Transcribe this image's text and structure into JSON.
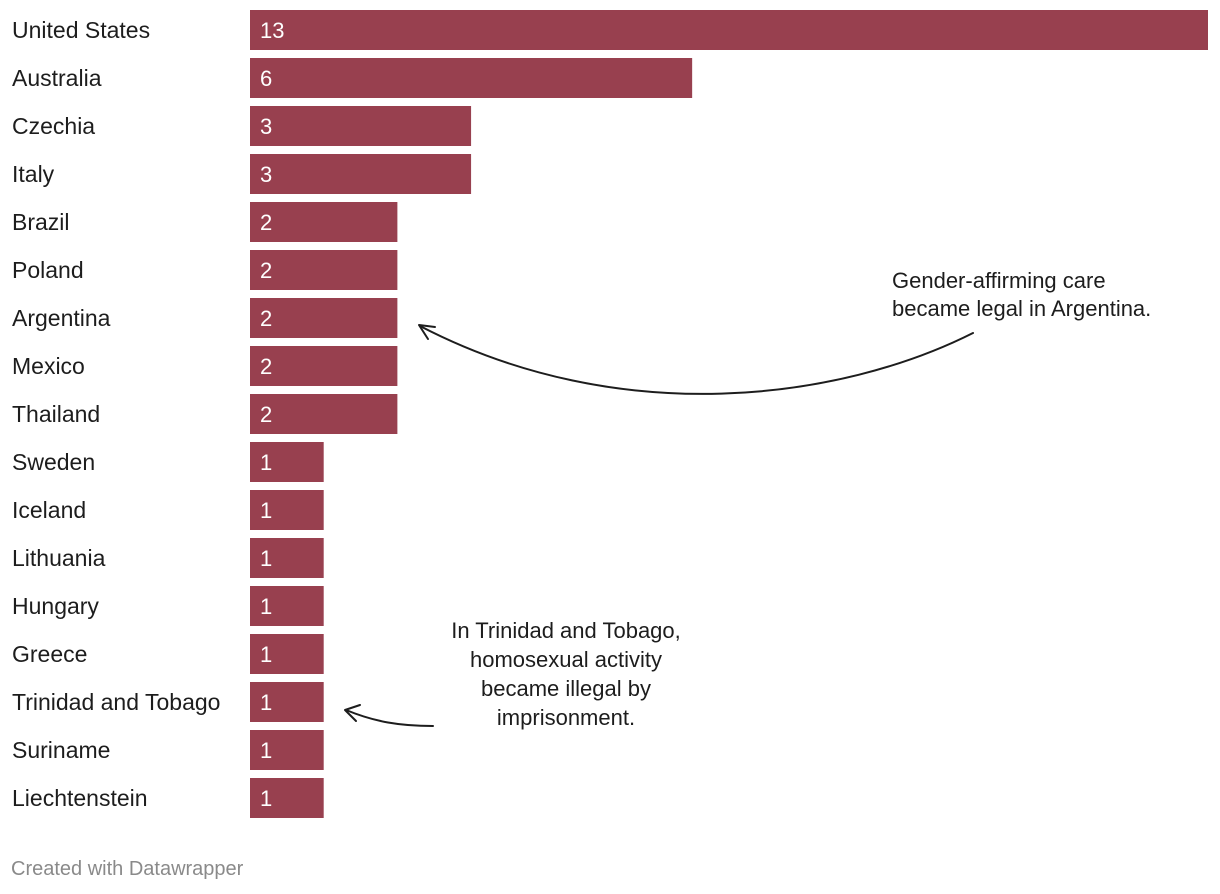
{
  "chart_data": {
    "type": "bar",
    "orientation": "horizontal",
    "categories": [
      "United States",
      "Australia",
      "Czechia",
      "Italy",
      "Brazil",
      "Poland",
      "Argentina",
      "Mexico",
      "Thailand",
      "Sweden",
      "Iceland",
      "Lithuania",
      "Hungary",
      "Greece",
      "Trinidad and Tobago",
      "Suriname",
      "Liechtenstein"
    ],
    "values": [
      13,
      6,
      3,
      3,
      2,
      2,
      2,
      2,
      2,
      1,
      1,
      1,
      1,
      1,
      1,
      1,
      1
    ],
    "title": "",
    "xlabel": "",
    "ylabel": "",
    "xlim": [
      0,
      13
    ],
    "bar_color": "#98404f",
    "value_label_color": "#ffffff",
    "grid": false,
    "legend": "none",
    "annotations": [
      {
        "target": "Argentina",
        "lines": [
          "Gender-affirming care",
          "became legal in Argentina."
        ]
      },
      {
        "target": "Trinidad and Tobago",
        "lines": [
          "In Trinidad and Tobago,",
          "homosexual activity",
          "became illegal by",
          "imprisonment."
        ]
      }
    ]
  },
  "footer": {
    "credit": "Created with Datawrapper"
  }
}
